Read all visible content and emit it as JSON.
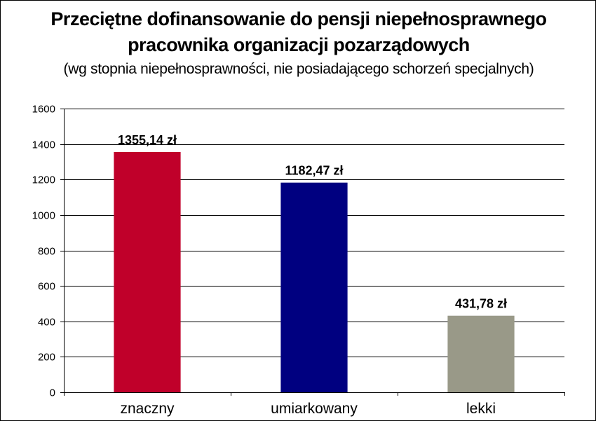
{
  "chart_data": {
    "type": "bar",
    "title_lines": [
      "Przeciętne dofinansowanie do pensji niepełnosprawnego",
      "pracownika organizacji pozarządowych"
    ],
    "subtitle": "(wg stopnia niepełnosprawności, nie posiadającego schorzeń specjalnych)",
    "categories": [
      "znaczny",
      "umiarkowany",
      "lekki"
    ],
    "values": [
      1355.14,
      1182.47,
      431.78
    ],
    "data_labels": [
      "1355,14 zł",
      "1182,47 zł",
      "431,78 zł"
    ],
    "bar_colors": [
      "#c0002a",
      "#000080",
      "#999988"
    ],
    "ylim": [
      0,
      1600
    ],
    "yticks": [
      0,
      200,
      400,
      600,
      800,
      1000,
      1200,
      1400,
      1600
    ],
    "grid": true,
    "legend": "none",
    "xlabel": "",
    "ylabel": ""
  }
}
